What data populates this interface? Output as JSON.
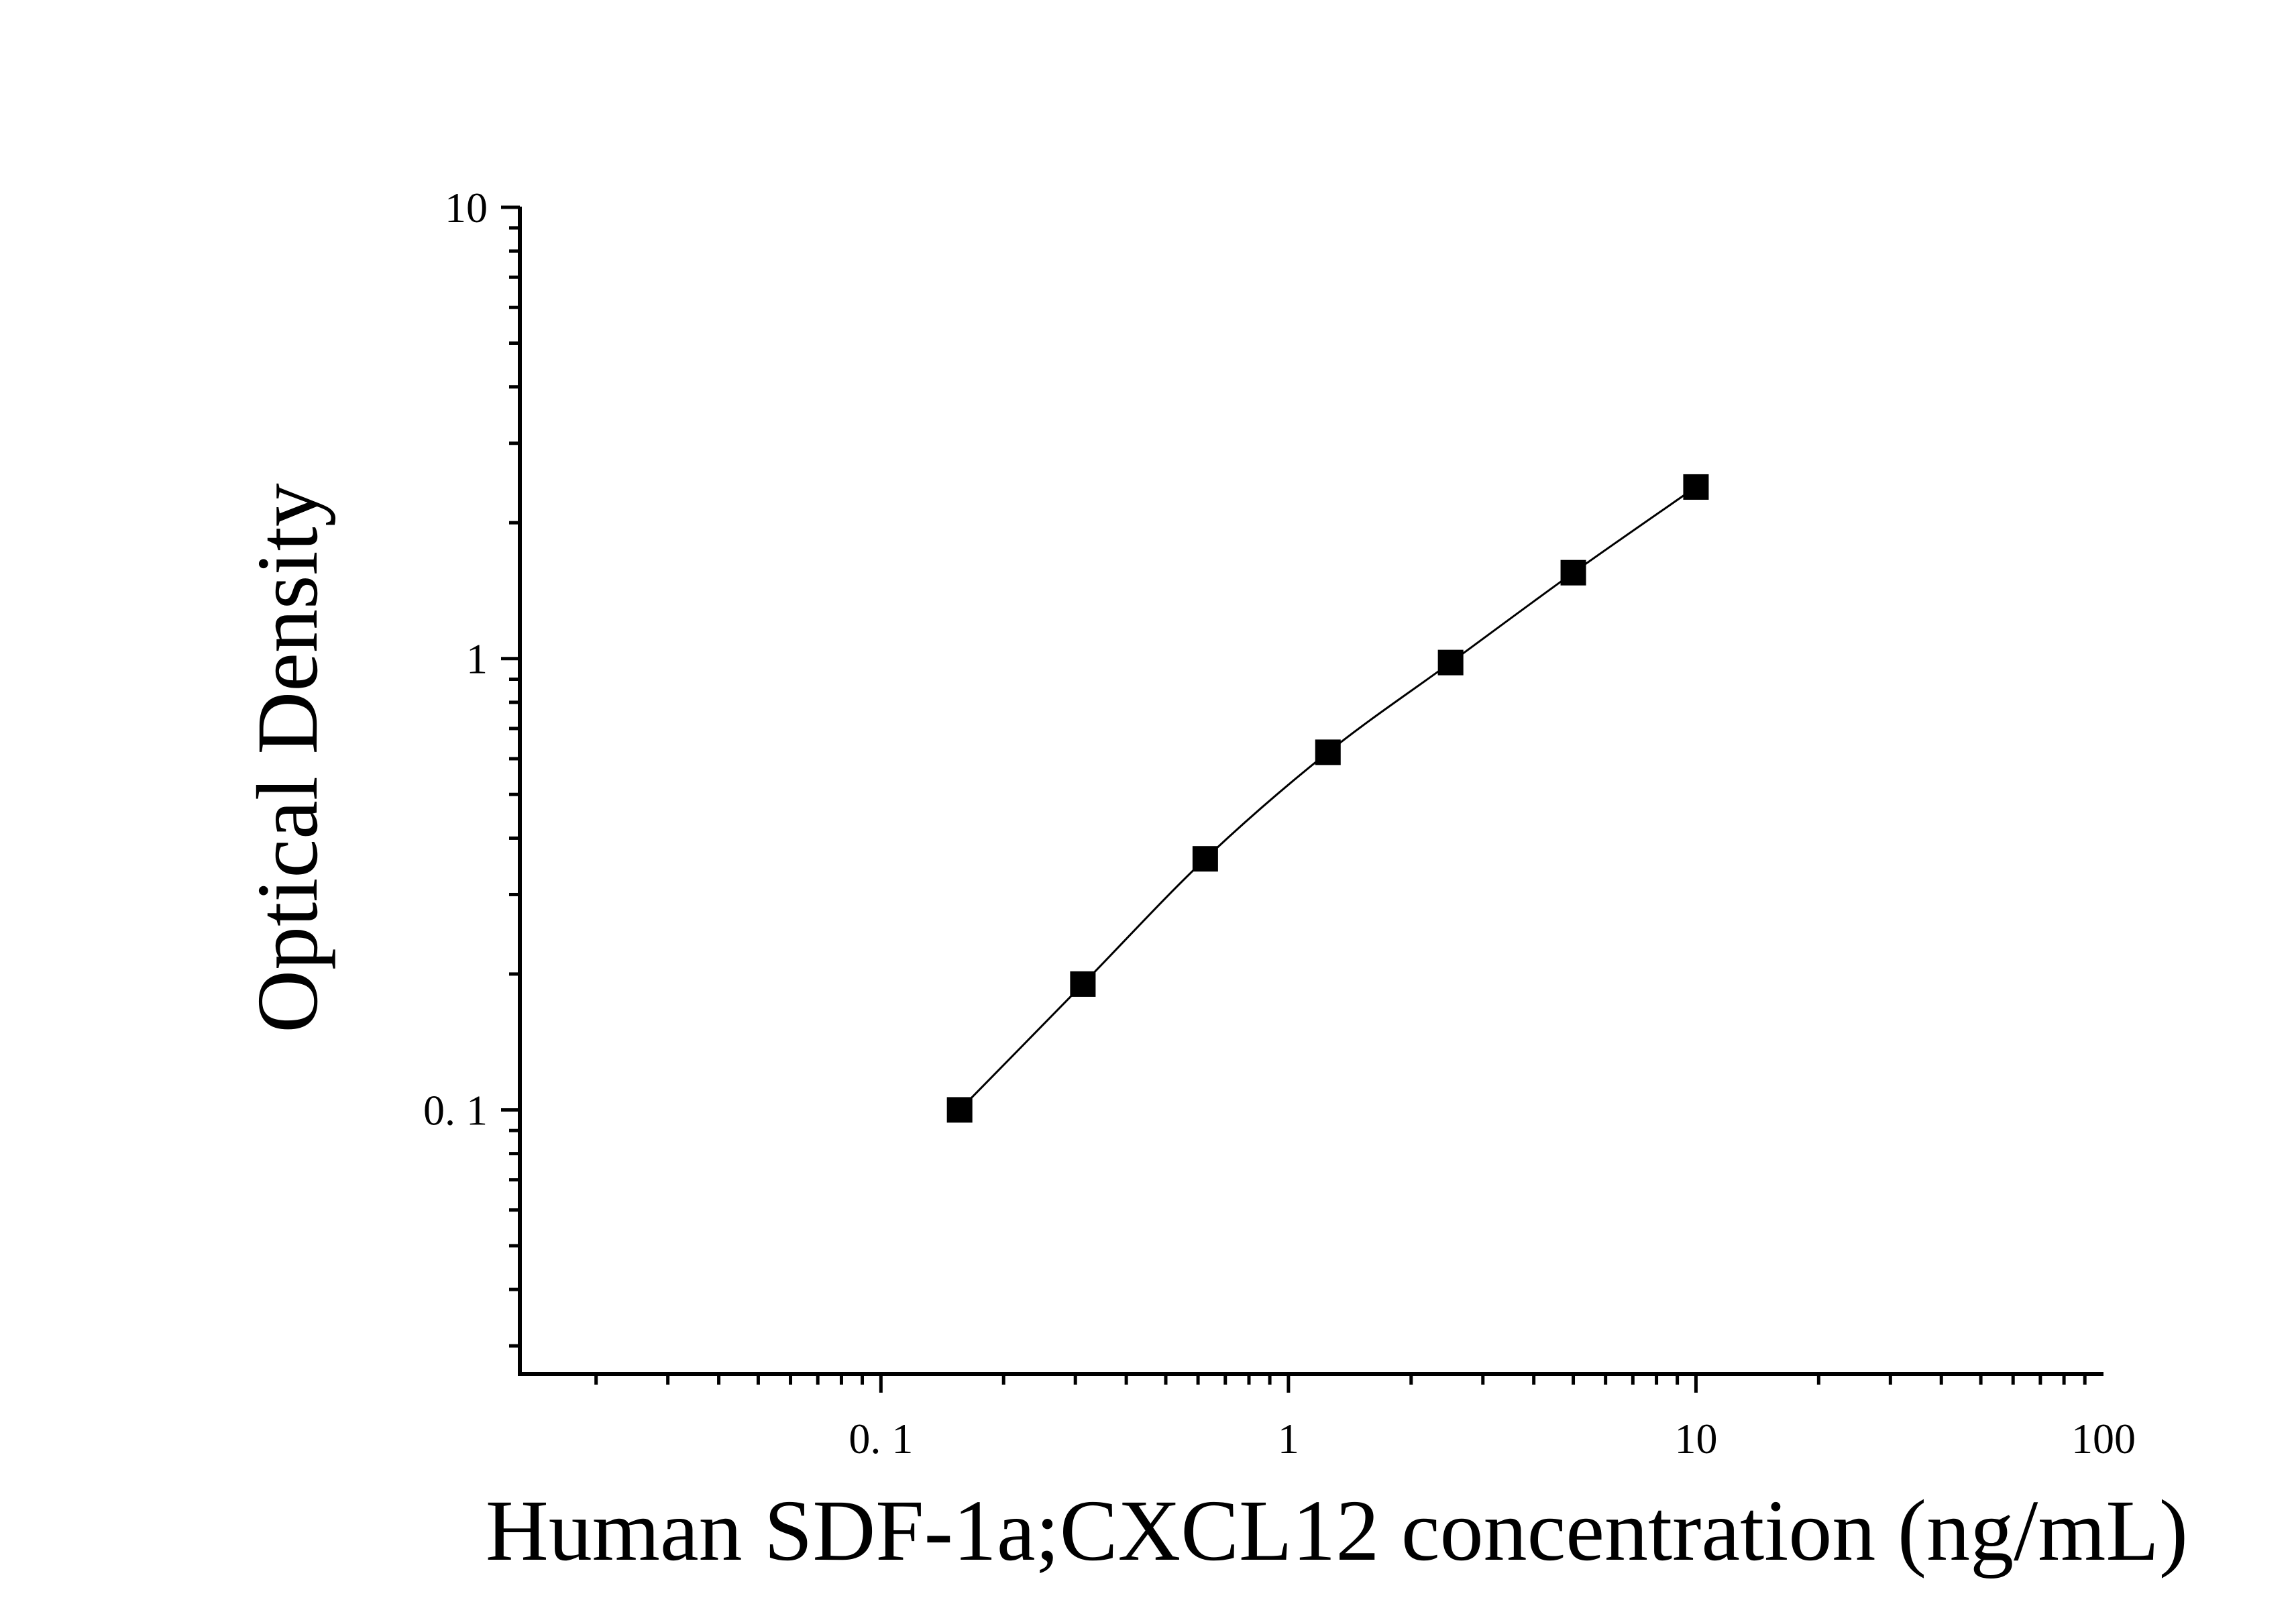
{
  "chart_data": {
    "type": "scatter",
    "title": "",
    "xlabel": "Human SDF-1a;CXCL12 concentration (ng/mL)",
    "ylabel": "Optical Density",
    "x_scale": "log",
    "y_scale": "log",
    "xlim": [
      0.013,
      100
    ],
    "ylim": [
      0.026,
      10
    ],
    "x_ticks": [
      {
        "value": 0.1,
        "label": "0. 1"
      },
      {
        "value": 1,
        "label": "1"
      },
      {
        "value": 10,
        "label": "10"
      },
      {
        "value": 100,
        "label": "100"
      }
    ],
    "y_ticks": [
      {
        "value": 0.1,
        "label": "0. 1"
      },
      {
        "value": 1,
        "label": "1"
      },
      {
        "value": 10,
        "label": "10"
      }
    ],
    "grid": false,
    "legend": "none",
    "series": [
      {
        "marker": "square",
        "color": "#000000",
        "fit_line": true,
        "x": [
          0.156,
          0.313,
          0.625,
          1.25,
          2.5,
          5,
          10
        ],
        "y": [
          0.1,
          0.19,
          0.36,
          0.62,
          0.98,
          1.55,
          2.4
        ]
      }
    ]
  }
}
